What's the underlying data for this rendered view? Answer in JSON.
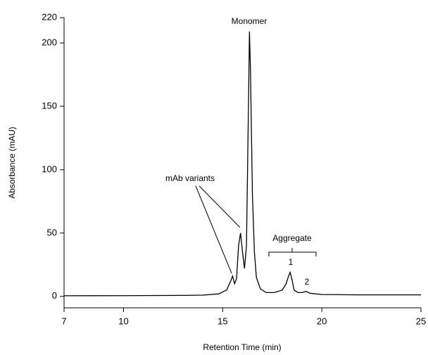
{
  "chart_data": {
    "type": "line",
    "xlabel": "Retention Time (min)",
    "ylabel": "Absorbance (mAU)",
    "x": [
      7,
      10,
      13,
      14,
      14.8,
      15.2,
      15.4,
      15.5,
      15.6,
      15.7,
      15.8,
      15.9,
      16.0,
      16.1,
      16.2,
      16.3,
      16.35,
      16.4,
      16.5,
      16.6,
      16.7,
      16.9,
      17.2,
      17.6,
      18.0,
      18.2,
      18.3,
      18.4,
      18.5,
      18.6,
      18.8,
      19.0,
      19.2,
      19.4,
      20,
      22,
      25
    ],
    "series": [
      {
        "color": "#000000",
        "values": [
          0.5,
          0.6,
          0.8,
          1,
          2,
          5,
          12,
          16,
          10,
          14,
          40,
          50,
          35,
          22,
          40,
          150,
          209,
          180,
          80,
          35,
          15,
          6,
          3,
          3,
          5,
          10,
          15,
          19,
          13,
          5,
          3,
          3,
          4,
          2.5,
          1.5,
          1.2,
          1.2
        ]
      }
    ],
    "xlim": [
      7,
      25
    ],
    "xticks": [
      7,
      10,
      15,
      20,
      25
    ],
    "ylim": [
      -9,
      220
    ],
    "yticks": [
      0,
      50,
      100,
      150,
      200,
      220
    ],
    "annotations": [
      "Monomer",
      "mAb variants",
      "Aggregate",
      "1",
      "2"
    ]
  }
}
